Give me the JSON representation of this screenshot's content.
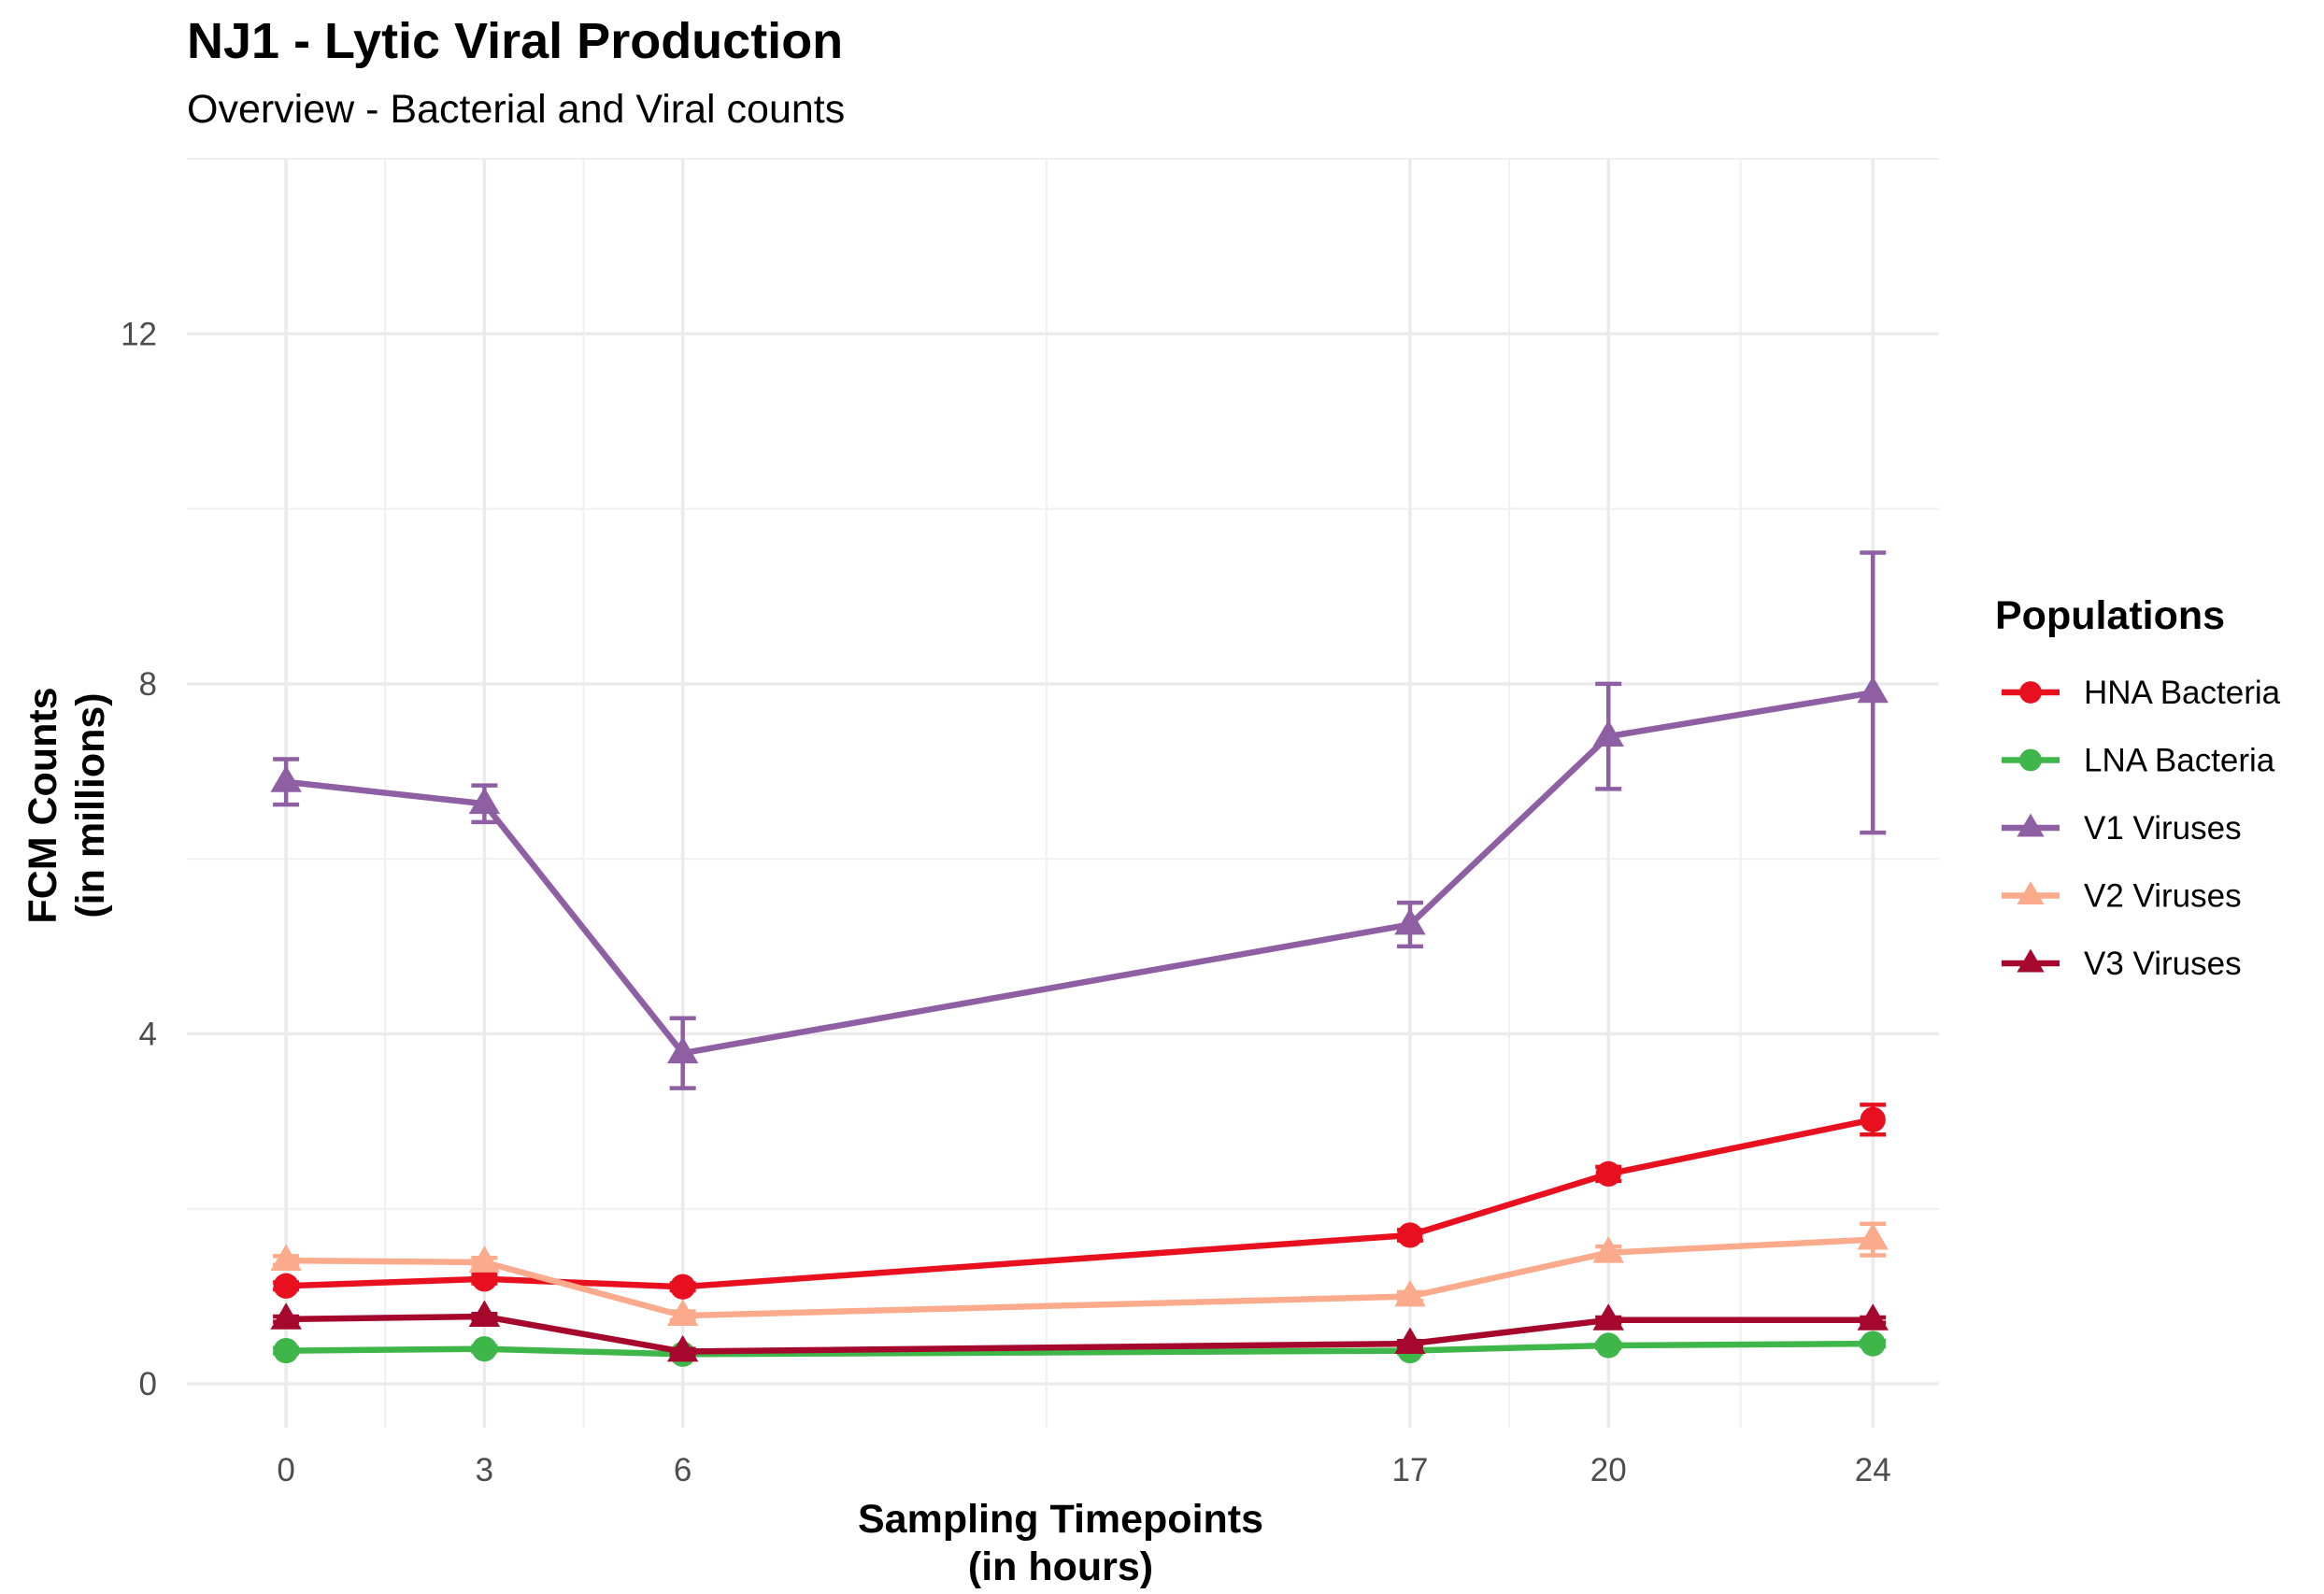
{
  "chart_data": {
    "type": "line",
    "title": "NJ1 - Lytic Viral Production",
    "subtitle": "Overview - Bacterial and Viral counts",
    "xlabel": [
      "Sampling Timepoints",
      "(in hours)"
    ],
    "ylabel": [
      "FCM Counts",
      "(in millions)"
    ],
    "x": [
      0,
      3,
      6,
      17,
      20,
      24
    ],
    "xticks": [
      "0",
      "3",
      "6",
      "17",
      "20",
      "24"
    ],
    "yticks": [
      "0",
      "4",
      "8",
      "12"
    ],
    "xlim": [
      -1.5,
      25
    ],
    "ylim": [
      -0.5,
      14
    ],
    "grid": true,
    "legend_position": "right",
    "legend_title": "Populations",
    "series": [
      {
        "name": "HNA Bacteria",
        "color": "#e8101e",
        "marker": "circle",
        "values": [
          1.12,
          1.2,
          1.11,
          1.7,
          2.4,
          3.02
        ],
        "errors": [
          0.04,
          0.05,
          0.04,
          0.06,
          0.08,
          0.17
        ]
      },
      {
        "name": "LNA Bacteria",
        "color": "#3fb64a",
        "marker": "circle",
        "values": [
          0.38,
          0.4,
          0.34,
          0.38,
          0.44,
          0.46
        ],
        "errors": [
          0.03,
          0.03,
          0.03,
          0.03,
          0.03,
          0.03
        ]
      },
      {
        "name": "V1 Viruses",
        "color": "#8f5fa3",
        "marker": "triangle",
        "values": [
          6.88,
          6.63,
          3.78,
          5.25,
          7.4,
          7.9
        ],
        "errors": [
          0.26,
          0.21,
          0.4,
          0.25,
          0.6,
          1.6
        ]
      },
      {
        "name": "V2 Viruses",
        "color": "#fbab8c",
        "marker": "triangle",
        "values": [
          1.41,
          1.39,
          0.78,
          1.0,
          1.5,
          1.65
        ],
        "errors": [
          0.05,
          0.05,
          0.05,
          0.05,
          0.07,
          0.18
        ]
      },
      {
        "name": "V3 Viruses",
        "color": "#a5082c",
        "marker": "triangle",
        "values": [
          0.74,
          0.77,
          0.37,
          0.46,
          0.73,
          0.73
        ],
        "errors": [
          0.03,
          0.03,
          0.03,
          0.03,
          0.03,
          0.03
        ]
      }
    ]
  }
}
